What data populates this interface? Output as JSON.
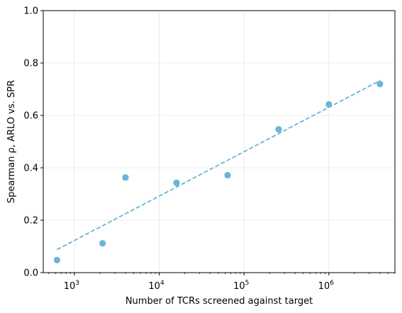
{
  "chart_data": {
    "type": "scatter",
    "title": "",
    "xlabel": "Number of TCRs screened against target",
    "ylabel": "Spearman ρ, ARLO vs. SPR",
    "xscale": "log",
    "xlim": [
      430,
      6000000
    ],
    "ylim": [
      0.0,
      1.0
    ],
    "grid": true,
    "yticks": [
      "0.0",
      "0.2",
      "0.4",
      "0.6",
      "0.8",
      "1.0"
    ],
    "xticks": [
      {
        "value": 1000,
        "base": "10",
        "exp": "3"
      },
      {
        "value": 10000,
        "base": "10",
        "exp": "4"
      },
      {
        "value": 100000,
        "base": "10",
        "exp": "5"
      },
      {
        "value": 1000000,
        "base": "10",
        "exp": "6"
      }
    ],
    "points": {
      "x": [
        625,
        2150,
        4000,
        16000,
        64000,
        256000,
        1000000,
        4000000
      ],
      "y": [
        0.048,
        0.112,
        0.363,
        0.343,
        0.372,
        0.547,
        0.642,
        0.72
      ],
      "color": "#6ab4d8"
    },
    "fit_line": {
      "style": "dashed",
      "x": [
        625,
        4000000
      ],
      "y": [
        0.088,
        0.733
      ],
      "color": "#6ab4d8"
    }
  }
}
